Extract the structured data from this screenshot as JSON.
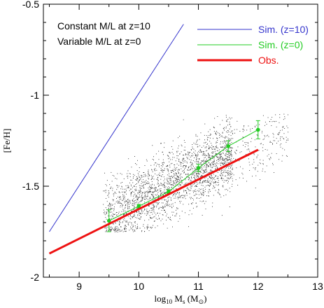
{
  "chart_data": {
    "type": "scatter",
    "xlabel_parts": {
      "base": "log",
      "sub1": "10",
      "m": " M",
      "sub2": "s",
      "unit": " (M",
      "sub3": "⊙",
      "close": ")"
    },
    "ylabel": "[Fe/H]",
    "xlim": [
      8.4,
      13
    ],
    "ylim": [
      -2.0,
      -0.5
    ],
    "x_ticks": [
      9,
      10,
      11,
      12,
      13
    ],
    "y_ticks": [
      -0.5,
      -1,
      -1.5,
      -2
    ],
    "x_tick_labels": [
      "9",
      "10",
      "11",
      "12",
      "13"
    ],
    "y_tick_labels": [
      "-0.5",
      "-1",
      "-1.5",
      "-2"
    ],
    "annotations": [
      "Constant M/L at z=10",
      "Variable M/L at z=0"
    ],
    "legend": {
      "position": "top-right",
      "entries": [
        {
          "label": "Sim. (z=10)",
          "color": "#3333cc"
        },
        {
          "label": "Sim. (z=0)",
          "color": "#22cc22"
        },
        {
          "label": "Obs.",
          "color": "#ee1111"
        }
      ]
    },
    "series": [
      {
        "name": "Sim. (z=10)",
        "style": "line",
        "color": "#3333cc",
        "x": [
          8.5,
          10.75
        ],
        "y": [
          -1.75,
          -0.61
        ]
      },
      {
        "name": "Sim. (z=0)",
        "style": "line-errorbars",
        "color": "#22cc22",
        "x": [
          9.5,
          10.0,
          10.5,
          11.0,
          11.5,
          12.0
        ],
        "y": [
          -1.69,
          -1.61,
          -1.53,
          -1.4,
          -1.28,
          -1.19
        ],
        "err": [
          0.06,
          0.01,
          0.01,
          0.02,
          0.03,
          0.05
        ]
      },
      {
        "name": "Obs.",
        "style": "thick-line",
        "color": "#ee1111",
        "x": [
          8.5,
          12.0
        ],
        "y": [
          -1.87,
          -1.3
        ]
      }
    ],
    "scatter_cloud": {
      "color": "#222222",
      "n_points": 2600,
      "x_range": [
        9.4,
        12.5
      ],
      "trend_slope": 0.165,
      "trend_intercept": -3.25,
      "spread": 0.09,
      "y_floor": -1.75,
      "y_ceiling": -1.1
    },
    "grid": false
  }
}
